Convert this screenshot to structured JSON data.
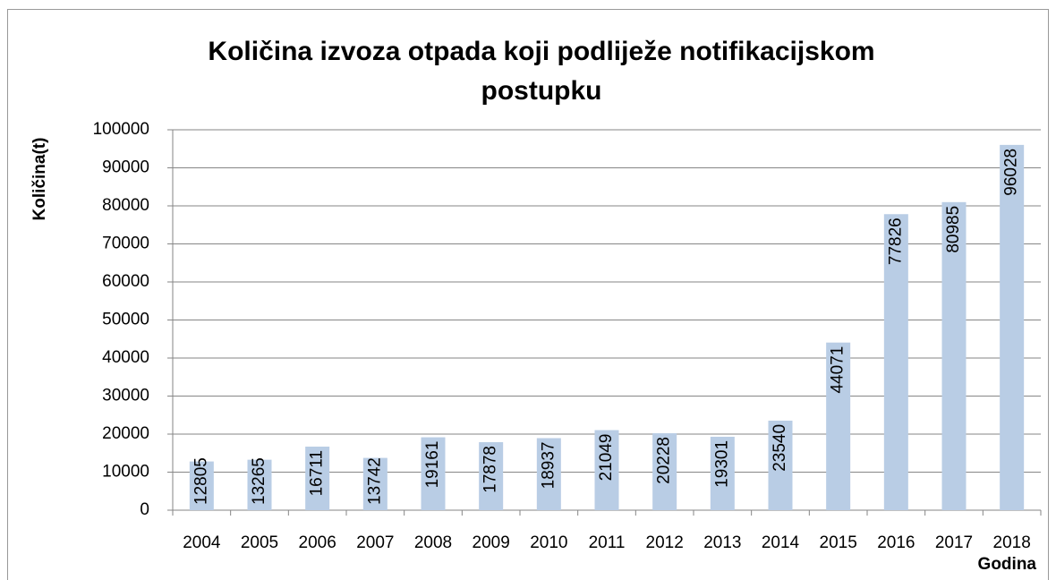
{
  "chart_data": {
    "type": "bar",
    "title": "Količina izvoza otpada koji podliježe notifikacijskom postupku",
    "y_label": "Količina(t)",
    "x_label": "Godina",
    "categories": [
      "2004",
      "2005",
      "2006",
      "2007",
      "2008",
      "2009",
      "2010",
      "2011",
      "2012",
      "2013",
      "2014",
      "2015",
      "2016",
      "2017",
      "2018"
    ],
    "values": [
      12805,
      13265,
      16711,
      13742,
      19161,
      17878,
      18937,
      21049,
      20228,
      19301,
      23540,
      44071,
      77826,
      80985,
      96028
    ],
    "color": "#b9cde5",
    "ylim": [
      0,
      100000
    ],
    "yticks": [
      0,
      10000,
      20000,
      30000,
      40000,
      50000,
      60000,
      70000,
      80000,
      90000,
      100000
    ],
    "grid": true
  }
}
